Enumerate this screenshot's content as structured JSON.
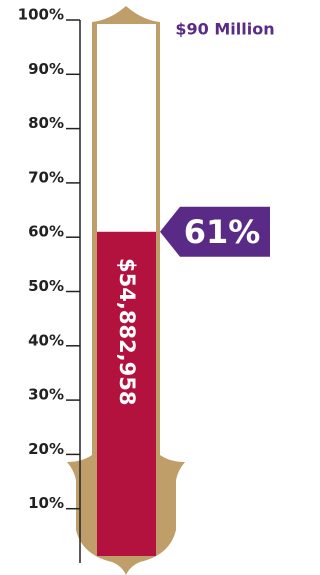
{
  "chart_data": {
    "type": "thermometer",
    "goal_label": "$90 Million",
    "raised_label": "$54,882,958",
    "value": 61,
    "value_label": "61%",
    "fill_color": "#b3123e",
    "frame_color": "#bf9e6a",
    "badge_color": "#5a2b86",
    "ylim": [
      0,
      100
    ],
    "yticks": [
      {
        "value": 10,
        "label": "10%"
      },
      {
        "value": 20,
        "label": "20%"
      },
      {
        "value": 30,
        "label": "30%"
      },
      {
        "value": 40,
        "label": "40%"
      },
      {
        "value": 50,
        "label": "50%"
      },
      {
        "value": 60,
        "label": "60%"
      },
      {
        "value": 70,
        "label": "70%"
      },
      {
        "value": 80,
        "label": "80%"
      },
      {
        "value": 90,
        "label": "90%"
      },
      {
        "value": 100,
        "label": "100%"
      }
    ]
  }
}
